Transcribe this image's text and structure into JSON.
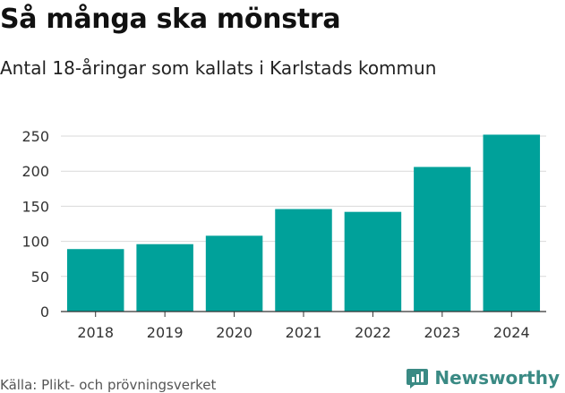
{
  "title": "Så många ska mönstra",
  "subtitle": "Antal 18-åringar som kallats i Karlstads kommun",
  "source": "Källa: Plikt- och prövningsverket",
  "brand": {
    "name": "Newsworthy",
    "icon": "newsworthy-logo-icon"
  },
  "colors": {
    "bar": "#00a19a",
    "grid": "#d9d9d9",
    "axis": "#333333"
  },
  "chart_data": {
    "type": "bar",
    "title": "Så många ska mönstra",
    "subtitle": "Antal 18-åringar som kallats i Karlstads kommun",
    "categories": [
      "2018",
      "2019",
      "2020",
      "2021",
      "2022",
      "2023",
      "2024"
    ],
    "values": [
      89,
      96,
      108,
      146,
      142,
      206,
      252
    ],
    "xlabel": "",
    "ylabel": "",
    "ylim": [
      0,
      250
    ],
    "yticks": [
      "0",
      "50",
      "100",
      "150",
      "200",
      "250"
    ],
    "grid": true,
    "legend": "none"
  }
}
